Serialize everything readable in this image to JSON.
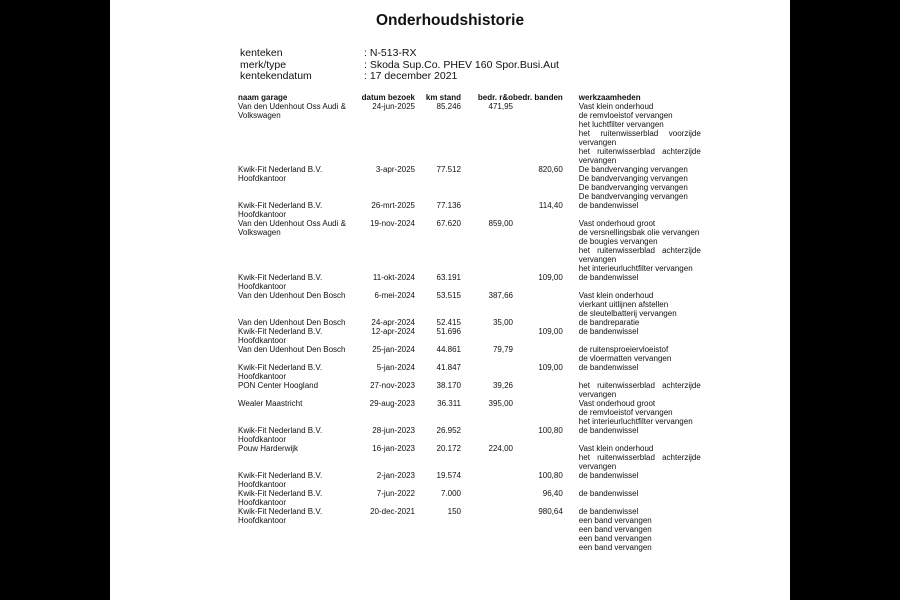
{
  "title": "Onderhoudshistorie",
  "info": [
    {
      "label": "kenteken",
      "value": ": N-513-RX"
    },
    {
      "label": "merk/type",
      "value": ": Skoda Sup.Co. PHEV 160 Spor.Busi.Aut"
    },
    {
      "label": "kentekendatum",
      "value": ": 17 december 2021"
    }
  ],
  "columns": [
    "naam garage",
    "datum bezoek",
    "km stand",
    "bedr. r&o",
    "bedr. banden",
    "werkzaamheden"
  ],
  "rows": [
    {
      "garage": "Van den Udenhout Oss Audi & Volkswagen",
      "date": "24-jun-2025",
      "km": "85.246",
      "ro": "471,95",
      "banden": "",
      "work": [
        "Vast klein onderhoud",
        "de remvloeistof vervangen",
        "het luchtfilter vervangen",
        "het ruitenwisserblad voorzijde vervangen",
        "het ruitenwisserblad achterzijde vervangen"
      ]
    },
    {
      "garage": "Kwik-Fit Nederland B.V. Hoofdkantoor",
      "date": "3-apr-2025",
      "km": "77.512",
      "ro": "",
      "banden": "820,60",
      "work": [
        "De bandvervanging vervangen",
        "De bandvervanging vervangen",
        "De bandvervanging vervangen",
        "De bandvervanging vervangen"
      ]
    },
    {
      "garage": "Kwik-Fit Nederland B.V. Hoofdkantoor",
      "date": "26-mrt-2025",
      "km": "77.136",
      "ro": "",
      "banden": "114,40",
      "work": [
        "de bandenwissel"
      ]
    },
    {
      "garage": "Van den Udenhout Oss Audi & Volkswagen",
      "date": "19-nov-2024",
      "km": "67.620",
      "ro": "859,00",
      "banden": "",
      "work": [
        "Vast onderhoud groot",
        "de versnellingsbak olie vervangen",
        "de bougies vervangen",
        "het ruitenwisserblad achterzijde vervangen",
        "het interieurluchtfilter vervangen"
      ]
    },
    {
      "garage": "Kwik-Fit Nederland B.V. Hoofdkantoor",
      "date": "11-okt-2024",
      "km": "63.191",
      "ro": "",
      "banden": "109,00",
      "work": [
        "de bandenwissel"
      ]
    },
    {
      "garage": "Van den Udenhout Den Bosch",
      "date": "6-mei-2024",
      "km": "53.515",
      "ro": "387,66",
      "banden": "",
      "work": [
        "Vast klein onderhoud",
        "vierkant uitlijnen afstellen",
        "de sleutelbatterij vervangen"
      ]
    },
    {
      "garage": "Van den Udenhout Den Bosch",
      "date": "24-apr-2024",
      "km": "52.415",
      "ro": "35,00",
      "banden": "",
      "work": [
        "de bandreparatie"
      ]
    },
    {
      "garage": "Kwik-Fit Nederland B.V. Hoofdkantoor",
      "date": "12-apr-2024",
      "km": "51.696",
      "ro": "",
      "banden": "109,00",
      "work": [
        "de bandenwissel"
      ]
    },
    {
      "garage": "Van den Udenhout Den Bosch",
      "date": "25-jan-2024",
      "km": "44.861",
      "ro": "79,79",
      "banden": "",
      "work": [
        "de ruitensproeiervloeistof",
        "de vloermatten vervangen"
      ]
    },
    {
      "garage": "Kwik-Fit Nederland B.V. Hoofdkantoor",
      "date": "5-jan-2024",
      "km": "41.847",
      "ro": "",
      "banden": "109,00",
      "work": [
        "de bandenwissel"
      ]
    },
    {
      "garage": "PON Center Hoogland",
      "date": "27-nov-2023",
      "km": "38.170",
      "ro": "39,26",
      "banden": "",
      "work": [
        "het ruitenwisserblad achterzijde vervangen"
      ]
    },
    {
      "garage": "Wealer Maastricht",
      "date": "29-aug-2023",
      "km": "36.311",
      "ro": "395,00",
      "banden": "",
      "work": [
        "Vast onderhoud groot",
        "de remvloeistof vervangen",
        "het interieurluchtfilter vervangen"
      ]
    },
    {
      "garage": "Kwik-Fit Nederland B.V. Hoofdkantoor",
      "date": "28-jun-2023",
      "km": "26.952",
      "ro": "",
      "banden": "100,80",
      "work": [
        "de bandenwissel"
      ]
    },
    {
      "garage": "Pouw Harderwijk",
      "date": "16-jan-2023",
      "km": "20.172",
      "ro": "224,00",
      "banden": "",
      "work": [
        "Vast klein onderhoud",
        "het ruitenwisserblad achterzijde vervangen"
      ]
    },
    {
      "garage": "Kwik-Fit Nederland B.V. Hoofdkantoor",
      "date": "2-jan-2023",
      "km": "19.574",
      "ro": "",
      "banden": "100,80",
      "work": [
        "de bandenwissel"
      ]
    },
    {
      "garage": "Kwik-Fit Nederland B.V. Hoofdkantoor",
      "date": "7-jun-2022",
      "km": "7.000",
      "ro": "",
      "banden": "96,40",
      "work": [
        "de bandenwissel"
      ]
    },
    {
      "garage": "Kwik-Fit Nederland B.V. Hoofdkantoor",
      "date": "20-dec-2021",
      "km": "150",
      "ro": "",
      "banden": "980,64",
      "work": [
        "de bandenwissel",
        "een band vervangen",
        "een band vervangen",
        "een band vervangen",
        "een band vervangen"
      ]
    }
  ]
}
